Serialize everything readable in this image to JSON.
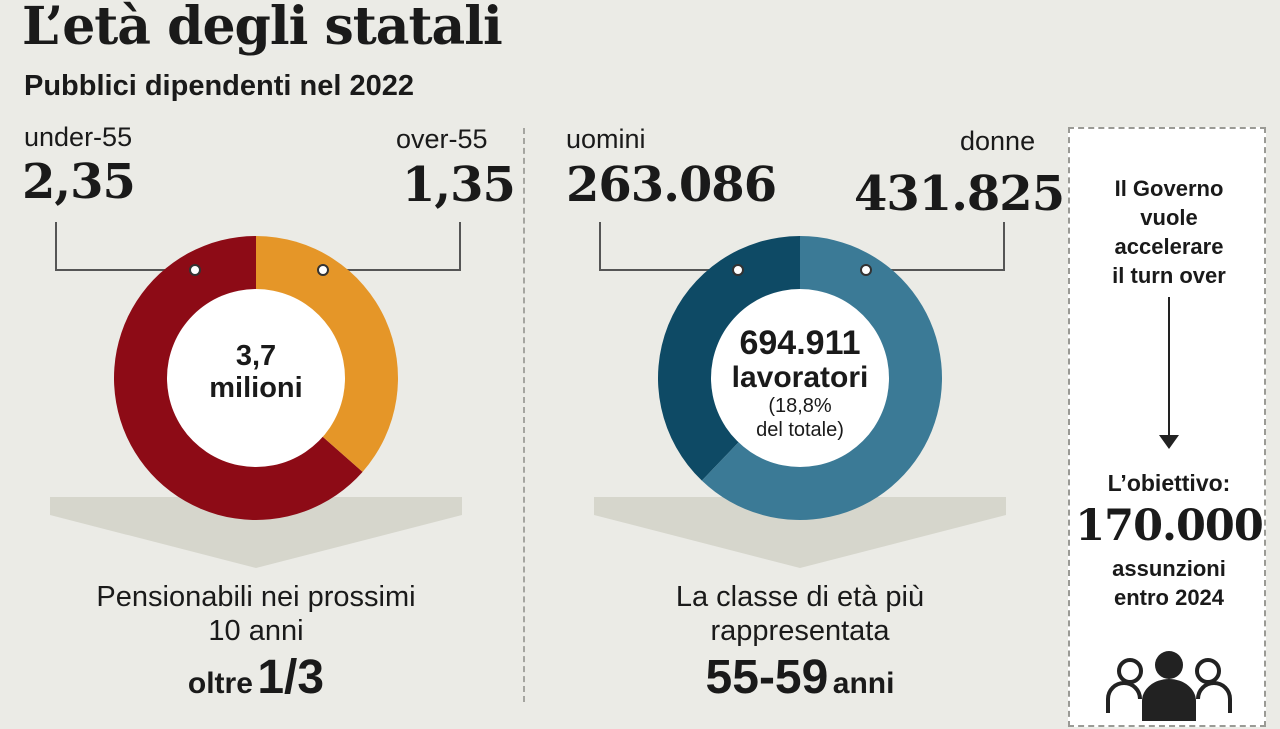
{
  "header": {
    "title": "L’età degli statali",
    "subtitle": "Pubblici dipendenti nel 2022"
  },
  "chart_data": [
    {
      "type": "pie",
      "categories": [
        "under-55",
        "over-55"
      ],
      "values": [
        2.35,
        1.35
      ],
      "value_labels": [
        "2,35",
        "1,35"
      ],
      "colors": [
        "#8d0b16",
        "#e59628"
      ],
      "center_value": "3,7",
      "center_label": "milioni",
      "caption_line1": "Pensionabili nei prossimi",
      "caption_line2": "10 anni",
      "highlight_prefix": "oltre",
      "highlight_value": "1/3"
    },
    {
      "type": "pie",
      "categories": [
        "uomini",
        "donne"
      ],
      "values": [
        263086,
        431825
      ],
      "value_labels": [
        "263.086",
        "431.825"
      ],
      "colors": [
        "#0e4a65",
        "#3b7a96"
      ],
      "center_value": "694.911",
      "center_label": "lavoratori",
      "center_note_line1": "(18,8%",
      "center_note_line2": "del totale)",
      "caption_line1": "La classe di età più",
      "caption_line2": "rappresentata",
      "highlight_value": "55-59",
      "highlight_suffix": "anni"
    }
  ],
  "sidebar": {
    "line1": "Il Governo",
    "line2": "vuole",
    "line3": "accelerare",
    "line4": "il turn over",
    "goal_label": "L’obiettivo:",
    "goal_value": "170.000",
    "goal_line1": "assunzioni",
    "goal_line2": "entro 2024",
    "icon": "people-group-icon"
  }
}
